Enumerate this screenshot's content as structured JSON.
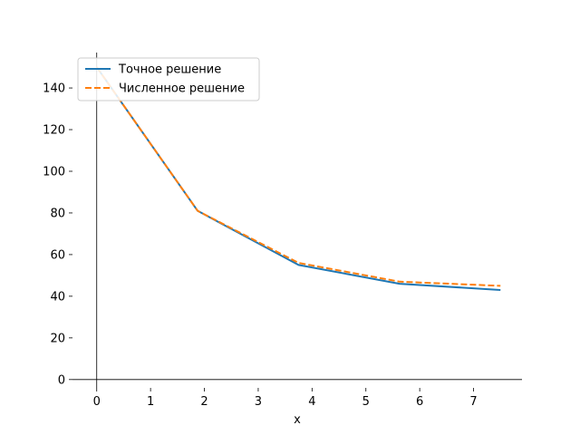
{
  "chart_data": {
    "type": "line",
    "xlabel": "x",
    "ylabel": "",
    "xlim": [
      -0.45,
      7.9
    ],
    "ylim": [
      -4,
      157
    ],
    "x_ticks": [
      0,
      1,
      2,
      3,
      4,
      5,
      6,
      7
    ],
    "y_ticks": [
      0,
      20,
      40,
      60,
      80,
      100,
      120,
      140
    ],
    "legend_position": "top-left",
    "grid": false,
    "series": [
      {
        "name": "Точное решение",
        "color": "#1f77b4",
        "style": "solid",
        "x": [
          0,
          1.875,
          3.75,
          5.625,
          7.5
        ],
        "y": [
          150,
          81,
          55,
          46,
          43
        ]
      },
      {
        "name": "Численное решение",
        "color": "#ff7f0e",
        "style": "dashed",
        "x": [
          0,
          1.875,
          3.75,
          5.625,
          7.5
        ],
        "y": [
          150,
          81,
          56,
          47,
          45
        ]
      }
    ]
  }
}
